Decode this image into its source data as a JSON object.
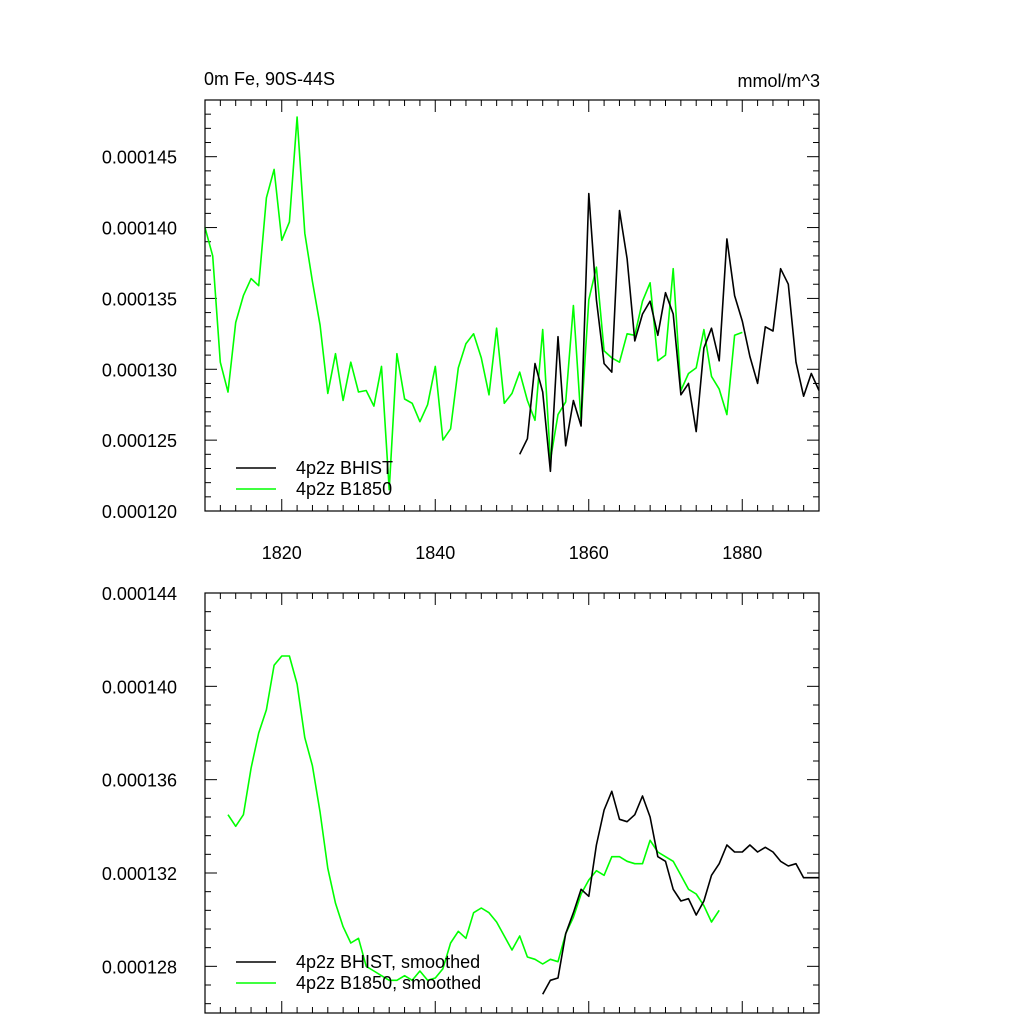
{
  "chart_data": [
    {
      "type": "line",
      "title_left": "0m Fe, 90S-44S",
      "title_right": "mmol/m^3",
      "xlim": [
        1810,
        1890
      ],
      "ylim": [
        0.00012,
        0.000149
      ],
      "x_major_ticks": [
        1820,
        1840,
        1860,
        1880
      ],
      "x_tick_labels": [
        "1820",
        "1840",
        "1860",
        "1880"
      ],
      "y_major_ticks": [
        0.00012,
        0.000125,
        0.00013,
        0.000135,
        0.00014,
        0.000145
      ],
      "y_tick_labels": [
        "0.000120",
        "0.000125",
        "0.000130",
        "0.000135",
        "0.000140",
        "0.000145"
      ],
      "grid": false,
      "legend_position": "bottom-left",
      "series": [
        {
          "name": "4p2z BHIST",
          "color": "#000000",
          "x": [
            1851,
            1852,
            1853,
            1854,
            1855,
            1856,
            1857,
            1858,
            1859,
            1860,
            1861,
            1862,
            1863,
            1864,
            1865,
            1866,
            1867,
            1868,
            1869,
            1870,
            1871,
            1872,
            1873,
            1874,
            1875,
            1876,
            1877,
            1878,
            1879,
            1880,
            1881,
            1882,
            1883,
            1884,
            1885,
            1886,
            1887,
            1888,
            1889,
            1890
          ],
          "y": [
            0.000124,
            0.0001251,
            0.0001304,
            0.0001284,
            0.0001228,
            0.0001323,
            0.0001246,
            0.0001278,
            0.000126,
            0.0001424,
            0.0001349,
            0.0001304,
            0.0001298,
            0.0001412,
            0.0001378,
            0.000132,
            0.0001339,
            0.0001348,
            0.0001324,
            0.0001354,
            0.0001339,
            0.0001282,
            0.000129,
            0.0001256,
            0.0001315,
            0.0001329,
            0.0001306,
            0.0001392,
            0.0001352,
            0.0001334,
            0.0001309,
            0.000129,
            0.000133,
            0.0001327,
            0.0001371,
            0.000136,
            0.0001305,
            0.0001281,
            0.0001297,
            0.0001285
          ]
        },
        {
          "name": "4p2z B1850",
          "color": "#00ff00",
          "x": [
            1810,
            1811,
            1812,
            1813,
            1814,
            1815,
            1816,
            1817,
            1818,
            1819,
            1820,
            1821,
            1822,
            1823,
            1824,
            1825,
            1826,
            1827,
            1828,
            1829,
            1830,
            1831,
            1832,
            1833,
            1834,
            1835,
            1836,
            1837,
            1838,
            1839,
            1840,
            1841,
            1842,
            1843,
            1844,
            1845,
            1846,
            1847,
            1848,
            1849,
            1850,
            1851,
            1852,
            1853,
            1854,
            1855,
            1856,
            1857,
            1858,
            1859,
            1860,
            1861,
            1862,
            1863,
            1864,
            1865,
            1866,
            1867,
            1868,
            1869,
            1870,
            1871,
            1872,
            1873,
            1874,
            1875,
            1876,
            1877,
            1878,
            1879,
            1880
          ],
          "y": [
            0.00014,
            0.000138,
            0.0001305,
            0.0001284,
            0.0001333,
            0.0001352,
            0.0001364,
            0.0001359,
            0.0001421,
            0.0001441,
            0.0001391,
            0.0001404,
            0.0001478,
            0.0001396,
            0.0001362,
            0.0001331,
            0.0001283,
            0.0001311,
            0.0001278,
            0.0001305,
            0.0001284,
            0.0001285,
            0.0001274,
            0.0001302,
            0.0001215,
            0.0001311,
            0.0001279,
            0.0001276,
            0.0001263,
            0.0001275,
            0.0001302,
            0.000125,
            0.0001258,
            0.0001301,
            0.0001318,
            0.0001325,
            0.0001308,
            0.0001282,
            0.0001329,
            0.0001276,
            0.0001283,
            0.0001298,
            0.0001278,
            0.0001264,
            0.0001328,
            0.0001236,
            0.0001268,
            0.0001277,
            0.0001345,
            0.0001263,
            0.0001349,
            0.0001372,
            0.0001313,
            0.0001308,
            0.0001305,
            0.0001325,
            0.0001324,
            0.0001348,
            0.0001361,
            0.0001306,
            0.000131,
            0.0001371,
            0.0001285,
            0.0001297,
            0.0001301,
            0.0001328,
            0.0001295,
            0.0001286,
            0.0001268,
            0.0001324,
            0.0001326
          ]
        }
      ]
    },
    {
      "type": "line",
      "xlim": [
        1810,
        1890
      ],
      "ylim": [
        0.000126,
        0.000144
      ],
      "x_major_ticks": [
        1820,
        1840,
        1860,
        1880
      ],
      "y_major_ticks": [
        0.000128,
        0.000132,
        0.000136,
        0.00014,
        0.000144
      ],
      "y_tick_labels": [
        "0.000128",
        "0.000132",
        "0.000136",
        "0.000140",
        "0.000144"
      ],
      "grid": false,
      "legend_position": "bottom-left",
      "series": [
        {
          "name": "4p2z BHIST, smoothed",
          "color": "#000000",
          "x": [
            1854,
            1855,
            1856,
            1857,
            1858,
            1859,
            1860,
            1861,
            1862,
            1863,
            1864,
            1865,
            1866,
            1867,
            1868,
            1869,
            1870,
            1871,
            1872,
            1873,
            1874,
            1875,
            1876,
            1877,
            1878,
            1879,
            1880,
            1881,
            1882,
            1883,
            1884,
            1885,
            1886,
            1887,
            1888,
            1889,
            1890
          ],
          "y": [
            0.0001268,
            0.0001274,
            0.0001275,
            0.0001294,
            0.0001303,
            0.0001313,
            0.000131,
            0.0001332,
            0.0001347,
            0.0001355,
            0.0001343,
            0.0001342,
            0.0001345,
            0.0001353,
            0.0001344,
            0.0001327,
            0.0001325,
            0.0001313,
            0.0001308,
            0.0001309,
            0.0001302,
            0.0001308,
            0.0001319,
            0.0001324,
            0.0001332,
            0.0001329,
            0.0001329,
            0.0001332,
            0.0001329,
            0.0001331,
            0.0001329,
            0.0001325,
            0.0001323,
            0.0001324,
            0.0001318,
            0.0001318,
            0.0001318
          ]
        },
        {
          "name": "4p2z B1850, smoothed",
          "color": "#00ff00",
          "x": [
            1813,
            1814,
            1815,
            1816,
            1817,
            1818,
            1819,
            1820,
            1821,
            1822,
            1823,
            1824,
            1825,
            1826,
            1827,
            1828,
            1829,
            1830,
            1831,
            1832,
            1833,
            1834,
            1835,
            1836,
            1837,
            1838,
            1839,
            1840,
            1841,
            1842,
            1843,
            1844,
            1845,
            1846,
            1847,
            1848,
            1849,
            1850,
            1851,
            1852,
            1853,
            1854,
            1855,
            1856,
            1857,
            1858,
            1859,
            1860,
            1861,
            1862,
            1863,
            1864,
            1865,
            1866,
            1867,
            1868,
            1869,
            1870,
            1871,
            1872,
            1873,
            1874,
            1875,
            1876,
            1877
          ],
          "y": [
            0.0001345,
            0.000134,
            0.0001345,
            0.0001365,
            0.000138,
            0.000139,
            0.0001409,
            0.0001413,
            0.0001413,
            0.0001401,
            0.0001378,
            0.0001366,
            0.0001346,
            0.0001322,
            0.0001307,
            0.0001297,
            0.000129,
            0.0001292,
            0.000128,
            0.0001278,
            0.0001276,
            0.0001274,
            0.0001274,
            0.0001276,
            0.0001274,
            0.0001278,
            0.0001274,
            0.0001275,
            0.0001279,
            0.000129,
            0.0001295,
            0.0001292,
            0.0001303,
            0.0001305,
            0.0001303,
            0.0001299,
            0.0001293,
            0.0001287,
            0.0001293,
            0.0001284,
            0.0001283,
            0.0001281,
            0.0001283,
            0.0001282,
            0.0001294,
            0.0001301,
            0.0001311,
            0.0001317,
            0.0001321,
            0.0001319,
            0.0001327,
            0.0001327,
            0.0001325,
            0.0001324,
            0.0001324,
            0.0001334,
            0.0001329,
            0.0001327,
            0.0001325,
            0.0001319,
            0.0001313,
            0.0001311,
            0.0001306,
            0.0001299,
            0.0001304
          ]
        }
      ]
    }
  ]
}
